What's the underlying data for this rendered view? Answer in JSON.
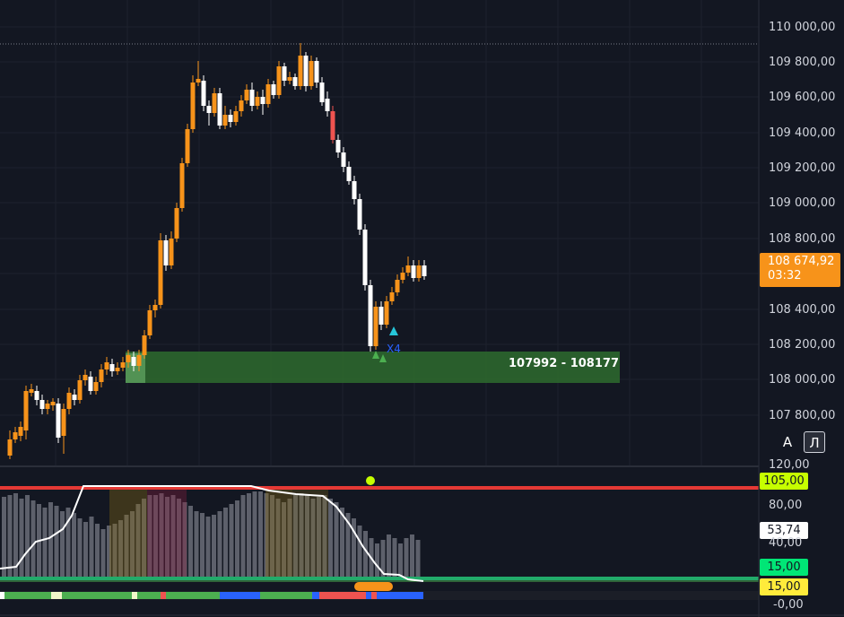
{
  "price_axis": {
    "ticks": [
      "110 000,00",
      "109 800,00",
      "109 600,00",
      "109 400,00",
      "109 200,00",
      "109 000,00",
      "108 800,00",
      "108 400,00",
      "108 200,00",
      "108 000,00",
      "107 800,00"
    ]
  },
  "current_price": {
    "value": "108 674,92",
    "countdown": "03:32"
  },
  "zone": {
    "label": "107992 - 108177"
  },
  "signal": {
    "label": "X4"
  },
  "controls": {
    "auto_label": "A",
    "log_label": "Л"
  },
  "oscillator": {
    "axis_ticks": {
      "top": "120,00",
      "mid": "80,00",
      "low": "40,00",
      "zero": "-0,00"
    },
    "upper_band": "105,00",
    "value": "53,74",
    "lower_band_1": "15,00",
    "lower_band_2": "15,00"
  },
  "colors": {
    "background": "#131722",
    "bull_candle": "#f7931a",
    "bear_candle": "#ffffff",
    "accent_red": "#ef5350",
    "zone_green": "#2e6b2e",
    "band_red": "#e53935",
    "band_green": "#22ab6a",
    "badge_yellowgreen": "#c6ff00",
    "badge_green": "#00e676",
    "badge_yellow": "#ffeb3b"
  }
}
